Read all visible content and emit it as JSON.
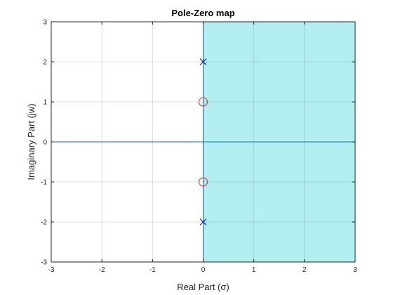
{
  "chart_data": {
    "type": "scatter",
    "title": "Pole-Zero map",
    "xlabel": "Real Part (σ)",
    "ylabel": "Imaginary Part (jw)",
    "xlim": [
      -3,
      3
    ],
    "ylim": [
      -3,
      3
    ],
    "xticks": [
      "-3",
      "-2",
      "-1",
      "0",
      "1",
      "2",
      "3"
    ],
    "yticks": [
      "-3",
      "-2",
      "-1",
      "0",
      "1",
      "2",
      "3"
    ],
    "grid": true,
    "shaded_region": {
      "x_from": 0,
      "x_to": 3,
      "color": "#b3eff0"
    },
    "axis_line_color": "#0072bd",
    "poles": [
      {
        "x": 0,
        "y": 2
      },
      {
        "x": 0,
        "y": -2
      }
    ],
    "zeros": [
      {
        "x": 0,
        "y": 1
      },
      {
        "x": 0,
        "y": -1
      }
    ],
    "pole_color": "#0000ff",
    "zero_color": "#d62728"
  }
}
